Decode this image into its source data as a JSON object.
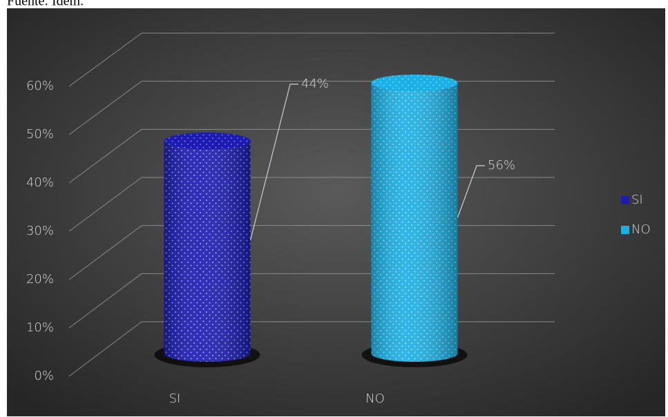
{
  "source": "Fuente: Ídem.",
  "chart_data": {
    "type": "bar3d",
    "categories": [
      "SI",
      "NO"
    ],
    "series": [
      {
        "name": "SI",
        "color": "#1c1cb4"
      },
      {
        "name": "NO",
        "color": "#1bb1e6"
      }
    ],
    "values": [
      44,
      56
    ],
    "value_labels": [
      "44%",
      "56%"
    ],
    "ylim": [
      0,
      60
    ],
    "yticks": [
      {
        "value": 0,
        "label": "0%"
      },
      {
        "value": 10,
        "label": "10%"
      },
      {
        "value": 20,
        "label": "20%"
      },
      {
        "value": 30,
        "label": "30%"
      },
      {
        "value": 40,
        "label": "40%"
      },
      {
        "value": 50,
        "label": "50%"
      },
      {
        "value": 60,
        "label": "60%"
      }
    ],
    "grid": true,
    "legend": "right"
  }
}
